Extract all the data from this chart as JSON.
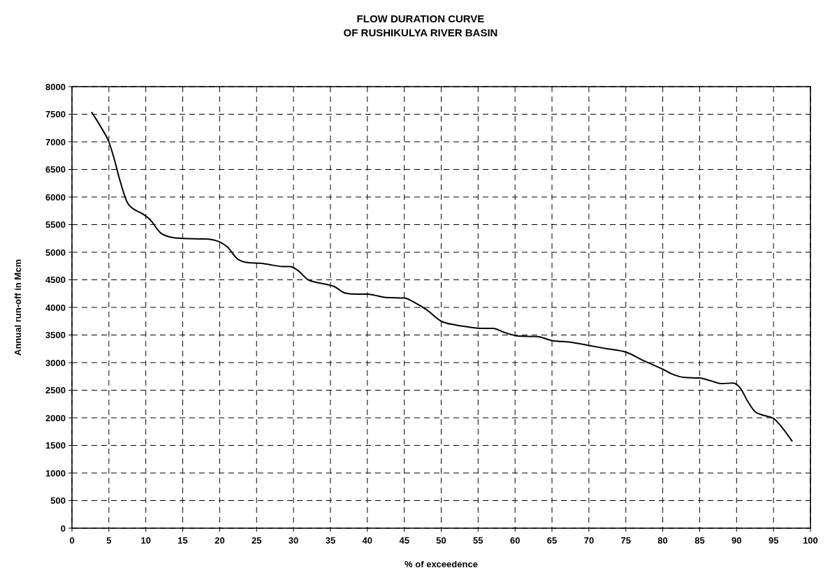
{
  "chart_data": {
    "type": "line",
    "title": "FLOW DURATION CURVE\nOF RUSHIKULYA RIVER BASIN",
    "xlabel": "% of exceedence",
    "ylabel": "Annual run-off in Mcm",
    "xlim": [
      0,
      100
    ],
    "xticks": [
      0,
      5,
      10,
      15,
      20,
      25,
      30,
      35,
      40,
      45,
      50,
      55,
      60,
      65,
      70,
      75,
      80,
      85,
      90,
      95,
      100
    ],
    "ylim": [
      0,
      8000
    ],
    "yticks": [
      0,
      500,
      1000,
      1500,
      2000,
      2500,
      3000,
      3500,
      4000,
      4500,
      5000,
      5500,
      6000,
      6500,
      7000,
      7500,
      8000
    ],
    "grid": true,
    "line_style": "solid",
    "series": [
      {
        "color": "#000000",
        "x": [
          2.7,
          4,
          5,
          5.7,
          6.5,
          7.5,
          8.5,
          9.5,
          10.5,
          12,
          13.5,
          15,
          18,
          19.5,
          21,
          22.5,
          24,
          25.5,
          27,
          28.5,
          29.5,
          30.5,
          32,
          34,
          35.5,
          37,
          38.5,
          40,
          41,
          42.5,
          45,
          46.5,
          48,
          50,
          52,
          54,
          55.5,
          57,
          58.5,
          60.5,
          63,
          65,
          67.5,
          70,
          72.5,
          75,
          77.5,
          80,
          81.5,
          83,
          85,
          86.5,
          88,
          89.5,
          90.5,
          91.5,
          92.5,
          93.5,
          95,
          96,
          97.5
        ],
        "values": [
          7530,
          7250,
          7000,
          6700,
          6300,
          5900,
          5770,
          5700,
          5600,
          5350,
          5270,
          5250,
          5240,
          5210,
          5100,
          4870,
          4810,
          4800,
          4770,
          4740,
          4740,
          4680,
          4500,
          4430,
          4380,
          4260,
          4240,
          4240,
          4220,
          4180,
          4170,
          4080,
          3960,
          3750,
          3680,
          3640,
          3620,
          3620,
          3550,
          3480,
          3470,
          3400,
          3370,
          3310,
          3250,
          3190,
          3030,
          2880,
          2780,
          2730,
          2720,
          2670,
          2620,
          2630,
          2540,
          2300,
          2110,
          2050,
          1990,
          1850,
          1580
        ]
      }
    ]
  }
}
